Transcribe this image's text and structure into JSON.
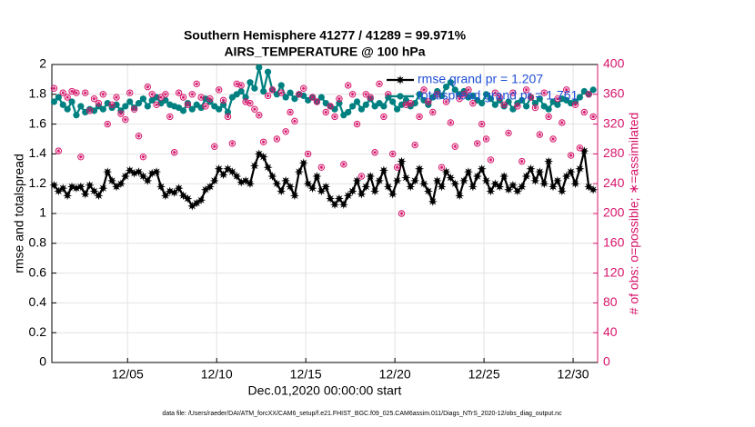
{
  "chart_data": {
    "type": "line",
    "title": "Southern Hemisphere 41277 / 41289 = 99.971%",
    "subtitle": "AIRS_TEMPERATURE @ 100 hPa",
    "xlabel": "Dec.01,2020 00:00:00 start",
    "ylabel": "rmse and totalspread",
    "y2label": "# of obs: o=possible; ∗=assimilated",
    "footer": "data file: /Users/raeder/DAI/ATM_forcXX/CAM6_setup/f.e21.FHIST_BGC.f09_025.CAM6assim.011/Diags_NTrS_2020-12/obs_diag_output.nc",
    "grid": true,
    "legend": "upper right",
    "xlim": [
      0.75,
      31.375
    ],
    "xticks": [
      {
        "value": 5,
        "label": "12/05"
      },
      {
        "value": 10,
        "label": "12/10"
      },
      {
        "value": 15,
        "label": "12/15"
      },
      {
        "value": 20,
        "label": "12/20"
      },
      {
        "value": 25,
        "label": "12/25"
      },
      {
        "value": 30,
        "label": "12/30"
      }
    ],
    "ylim": [
      0,
      2
    ],
    "yticks": [
      0,
      0.2,
      0.4,
      0.6,
      0.8,
      1,
      1.2,
      1.4,
      1.6,
      1.8,
      2
    ],
    "y2lim": [
      0,
      400
    ],
    "y2ticks": [
      0,
      40,
      80,
      120,
      160,
      200,
      240,
      280,
      320,
      360,
      400
    ],
    "x": [
      0.875,
      1.125,
      1.375,
      1.625,
      1.875,
      2.125,
      2.375,
      2.625,
      2.875,
      3.125,
      3.375,
      3.625,
      3.875,
      4.125,
      4.375,
      4.625,
      4.875,
      5.125,
      5.375,
      5.625,
      5.875,
      6.125,
      6.375,
      6.625,
      6.875,
      7.125,
      7.375,
      7.625,
      7.875,
      8.125,
      8.375,
      8.625,
      8.875,
      9.125,
      9.375,
      9.625,
      9.875,
      10.125,
      10.375,
      10.625,
      10.875,
      11.125,
      11.375,
      11.625,
      11.875,
      12.125,
      12.375,
      12.625,
      12.875,
      13.125,
      13.375,
      13.625,
      13.875,
      14.125,
      14.375,
      14.625,
      14.875,
      15.125,
      15.375,
      15.625,
      15.875,
      16.125,
      16.375,
      16.625,
      16.875,
      17.125,
      17.375,
      17.625,
      17.875,
      18.125,
      18.375,
      18.625,
      18.875,
      19.125,
      19.375,
      19.625,
      19.875,
      20.125,
      20.375,
      20.625,
      20.875,
      21.125,
      21.375,
      21.625,
      21.875,
      22.125,
      22.375,
      22.625,
      22.875,
      23.125,
      23.375,
      23.625,
      23.875,
      24.125,
      24.375,
      24.625,
      24.875,
      25.125,
      25.375,
      25.625,
      25.875,
      26.125,
      26.375,
      26.625,
      26.875,
      27.125,
      27.375,
      27.625,
      27.875,
      28.125,
      28.375,
      28.625,
      28.875,
      29.125,
      29.375,
      29.625,
      29.875,
      30.125,
      30.375,
      30.625,
      30.875,
      31.125
    ],
    "series": [
      {
        "name": "rmse grand pr = 1.207",
        "color": "#000000",
        "marker": "star",
        "values": [
          1.19,
          1.15,
          1.17,
          1.12,
          1.18,
          1.17,
          1.18,
          1.13,
          1.19,
          1.15,
          1.12,
          1.17,
          1.28,
          1.22,
          1.18,
          1.2,
          1.25,
          1.29,
          1.27,
          1.28,
          1.25,
          1.22,
          1.27,
          1.28,
          1.18,
          1.12,
          1.15,
          1.14,
          1.17,
          1.12,
          1.1,
          1.05,
          1.07,
          1.09,
          1.16,
          1.18,
          1.22,
          1.3,
          1.26,
          1.3,
          1.28,
          1.25,
          1.21,
          1.22,
          1.2,
          1.32,
          1.4,
          1.38,
          1.31,
          1.25,
          1.2,
          1.15,
          1.22,
          1.18,
          1.12,
          1.28,
          1.34,
          1.2,
          1.17,
          1.25,
          1.15,
          1.18,
          1.1,
          1.06,
          1.1,
          1.06,
          1.12,
          1.15,
          1.22,
          1.13,
          1.18,
          1.25,
          1.15,
          1.22,
          1.29,
          1.18,
          1.13,
          1.22,
          1.35,
          1.24,
          1.18,
          1.22,
          1.3,
          1.2,
          1.15,
          1.08,
          1.22,
          1.18,
          1.28,
          1.24,
          1.2,
          1.12,
          1.22,
          1.28,
          1.18,
          1.25,
          1.3,
          1.22,
          1.15,
          1.2,
          1.18,
          1.25,
          1.16,
          1.19,
          1.15,
          1.18,
          1.25,
          1.3,
          1.22,
          1.28,
          1.2,
          1.35,
          1.18,
          1.22,
          1.15,
          1.25,
          1.28,
          1.2,
          1.3,
          1.42,
          1.18,
          1.16
        ]
      },
      {
        "name": "totalspread grand pr = 1.761",
        "color": "#008080",
        "marker": "circle",
        "values": [
          1.75,
          1.78,
          1.73,
          1.7,
          1.75,
          1.66,
          1.72,
          1.68,
          1.7,
          1.69,
          1.72,
          1.7,
          1.74,
          1.71,
          1.73,
          1.69,
          1.72,
          1.75,
          1.71,
          1.74,
          1.77,
          1.72,
          1.76,
          1.78,
          1.74,
          1.76,
          1.73,
          1.72,
          1.71,
          1.69,
          1.74,
          1.7,
          1.73,
          1.71,
          1.77,
          1.75,
          1.72,
          1.7,
          1.73,
          1.68,
          1.78,
          1.8,
          1.82,
          1.78,
          1.88,
          1.84,
          1.98,
          1.82,
          1.95,
          1.83,
          1.8,
          1.86,
          1.78,
          1.81,
          1.77,
          1.8,
          1.79,
          1.76,
          1.78,
          1.75,
          1.78,
          1.74,
          1.72,
          1.7,
          1.74,
          1.66,
          1.68,
          1.72,
          1.75,
          1.7,
          1.73,
          1.77,
          1.72,
          1.74,
          1.72,
          1.78,
          1.75,
          1.7,
          1.73,
          1.76,
          1.72,
          1.74,
          1.8,
          1.76,
          1.73,
          1.78,
          1.82,
          1.79,
          1.85,
          1.88,
          1.83,
          1.8,
          1.82,
          1.78,
          1.79,
          1.76,
          1.74,
          1.8,
          1.77,
          1.73,
          1.76,
          1.72,
          1.75,
          1.7,
          1.74,
          1.76,
          1.72,
          1.78,
          1.74,
          1.77,
          1.72,
          1.7,
          1.75,
          1.73,
          1.77,
          1.76,
          1.74,
          1.75,
          1.78,
          1.82,
          1.8,
          1.83
        ]
      },
      {
        "color": "#d6156b",
        "marker": "obs",
        "axis": "y2",
        "values": [
          368,
          284,
          362,
          356,
          364,
          362,
          276,
          362,
          338,
          354,
          348,
          360,
          320,
          346,
          356,
          334,
          326,
          362,
          340,
          304,
          276,
          370,
          360,
          346,
          356,
          360,
          330,
          282,
          362,
          356,
          346,
          360,
          374,
          356,
          344,
          354,
          290,
          366,
          352,
          330,
          294,
          374,
          372,
          350,
          348,
          340,
          332,
          296,
          358,
          366,
          300,
          362,
          310,
          336,
          324,
          360,
          368,
          280,
          356,
          350,
          262,
          336,
          344,
          330,
          354,
          266,
          372,
          360,
          320,
          250,
          360,
          356,
          282,
          374,
          330,
          360,
          280,
          262,
          200,
          346,
          348,
          292,
          330,
          366,
          350,
          336,
          360,
          262,
          350,
          322,
          290,
          354,
          360,
          366,
          348,
          294,
          320,
          300,
          272,
          362,
          356,
          346,
          308,
          362,
          344,
          270,
          366,
          356,
          342,
          306,
          362,
          330,
          300,
          354,
          322,
          366,
          278,
          346,
          288,
          336,
          360,
          330
        ]
      }
    ]
  }
}
